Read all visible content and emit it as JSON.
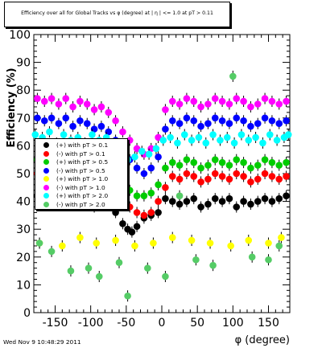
{
  "title": "Efficiency over all for Global Tracks vs φ (degree) at | η | <= 1.0 at pT > 0.11",
  "timestamp": "Wed Nov  9 10:48:29 2011",
  "chart_data": {
    "type": "scatter",
    "xlabel": "φ (degree)",
    "ylabel": "Efficiency (%)",
    "xlim": [
      -180,
      180
    ],
    "ylim": [
      0,
      100
    ],
    "grid": false,
    "legend_placement": "left",
    "xticks": [
      "-150",
      "-100",
      "-50",
      "0",
      "50",
      "100",
      "150"
    ],
    "xtick_values": [
      -150,
      -100,
      -50,
      0,
      50,
      100,
      150
    ],
    "yticks": [
      "0",
      "10",
      "20",
      "30",
      "40",
      "50",
      "60",
      "70",
      "80",
      "90",
      "100"
    ],
    "ytick_values": [
      0,
      10,
      20,
      30,
      40,
      50,
      60,
      70,
      80,
      90,
      100
    ],
    "series": [
      {
        "name": "(+) with pT > 0.1",
        "color": "#000000",
        "x": [
          -175,
          -165,
          -155,
          -145,
          -135,
          -125,
          -115,
          -105,
          -95,
          -85,
          -75,
          -65,
          -55,
          -48,
          -42,
          -35,
          -25,
          -15,
          -5,
          5,
          15,
          25,
          35,
          45,
          55,
          65,
          75,
          85,
          95,
          105,
          115,
          125,
          135,
          145,
          155,
          165,
          175
        ],
        "y": [
          42,
          41,
          42,
          40,
          41,
          39,
          40,
          41,
          38,
          40,
          39,
          36,
          32,
          30,
          29,
          31,
          34,
          35,
          36,
          41,
          40,
          39,
          40,
          41,
          38,
          39,
          41,
          40,
          41,
          38,
          40,
          39,
          40,
          41,
          40,
          41,
          42
        ]
      },
      {
        "name": "(-) with pT > 0.1",
        "color": "#ff0000",
        "x": [
          -175,
          -165,
          -155,
          -145,
          -135,
          -125,
          -115,
          -105,
          -95,
          -85,
          -75,
          -65,
          -55,
          -45,
          -35,
          -25,
          -15,
          -5,
          5,
          15,
          25,
          35,
          45,
          55,
          65,
          75,
          85,
          95,
          105,
          115,
          125,
          135,
          145,
          155,
          165,
          175
        ],
        "y": [
          50,
          49,
          50,
          48,
          50,
          47,
          49,
          48,
          46,
          47,
          45,
          43,
          40,
          38,
          36,
          35,
          36,
          40,
          45,
          49,
          48,
          50,
          49,
          47,
          48,
          50,
          49,
          48,
          50,
          49,
          47,
          48,
          50,
          49,
          48,
          49
        ]
      },
      {
        "name": "(+) with pT > 0.5",
        "color": "#00cc00",
        "x": [
          -175,
          -165,
          -155,
          -145,
          -135,
          -125,
          -115,
          -105,
          -95,
          -85,
          -75,
          -65,
          -55,
          -45,
          -35,
          -25,
          -15,
          -5,
          5,
          15,
          25,
          35,
          45,
          55,
          65,
          75,
          85,
          95,
          105,
          115,
          125,
          135,
          145,
          155,
          165,
          175
        ],
        "y": [
          55,
          54,
          55,
          53,
          55,
          52,
          54,
          53,
          51,
          52,
          50,
          48,
          46,
          44,
          42,
          42,
          43,
          46,
          52,
          54,
          53,
          55,
          54,
          52,
          53,
          55,
          54,
          53,
          55,
          54,
          52,
          53,
          55,
          54,
          53,
          54
        ]
      },
      {
        "name": "(-) with pT > 0.5",
        "color": "#0000ff",
        "x": [
          -175,
          -165,
          -155,
          -145,
          -135,
          -125,
          -115,
          -105,
          -95,
          -85,
          -75,
          -65,
          -55,
          -45,
          -35,
          -25,
          -15,
          -5,
          5,
          15,
          25,
          35,
          45,
          55,
          65,
          75,
          85,
          95,
          105,
          115,
          125,
          135,
          145,
          155,
          165,
          175
        ],
        "y": [
          70,
          69,
          70,
          68,
          70,
          67,
          69,
          68,
          66,
          67,
          65,
          62,
          58,
          55,
          52,
          50,
          52,
          56,
          66,
          69,
          68,
          70,
          69,
          67,
          68,
          70,
          69,
          68,
          70,
          69,
          67,
          68,
          70,
          69,
          68,
          69
        ]
      },
      {
        "name": "(+) with pT > 1.0",
        "color": "#ffff00",
        "x": [
          -172,
          -140,
          -115,
          -92,
          -65,
          -38,
          -12,
          15,
          42,
          68,
          97,
          122,
          150,
          168
        ],
        "y": [
          25,
          24,
          27,
          25,
          26,
          24,
          25,
          27,
          26,
          25,
          24,
          26,
          25,
          27
        ]
      },
      {
        "name": "(-) with pT > 1.0",
        "color": "#ff00ff",
        "x": [
          -175,
          -165,
          -155,
          -145,
          -135,
          -125,
          -115,
          -105,
          -95,
          -85,
          -75,
          -65,
          -55,
          -45,
          -35,
          -25,
          -15,
          -5,
          5,
          15,
          25,
          35,
          45,
          55,
          65,
          75,
          85,
          95,
          105,
          115,
          125,
          135,
          145,
          155,
          165,
          175
        ],
        "y": [
          77,
          76,
          77,
          75,
          77,
          74,
          76,
          75,
          73,
          74,
          72,
          69,
          65,
          62,
          59,
          57,
          59,
          63,
          73,
          76,
          75,
          77,
          76,
          74,
          75,
          77,
          76,
          75,
          77,
          76,
          74,
          75,
          77,
          76,
          75,
          76
        ]
      },
      {
        "name": "(+) with pT > 2.0",
        "color": "#00ffff",
        "x": [
          -178,
          -168,
          -158,
          -148,
          -138,
          -128,
          -118,
          -108,
          -98,
          -88,
          -78,
          -68,
          -58,
          -48,
          -38,
          -28,
          -18,
          -8,
          2,
          12,
          22,
          32,
          42,
          52,
          62,
          72,
          82,
          92,
          102,
          112,
          122,
          132,
          142,
          152,
          162,
          172,
          178
        ],
        "y": [
          64,
          63,
          65,
          61,
          64,
          62,
          63,
          61,
          64,
          62,
          63,
          60,
          58,
          55,
          56,
          58,
          57,
          59,
          62,
          63,
          61,
          64,
          62,
          63,
          61,
          64,
          62,
          63,
          61,
          64,
          62,
          63,
          61,
          64,
          62,
          63,
          64
        ]
      },
      {
        "name": "(-) with pT > 2.0",
        "color": "#55cc66",
        "x": [
          -172,
          -155,
          -128,
          -103,
          -88,
          -60,
          -48,
          -20,
          5,
          25,
          48,
          72,
          100,
          127,
          150,
          165
        ],
        "y": [
          25,
          22,
          15,
          16,
          13,
          18,
          6,
          16,
          13,
          42,
          19,
          17,
          85,
          20,
          19,
          24
        ]
      }
    ]
  }
}
